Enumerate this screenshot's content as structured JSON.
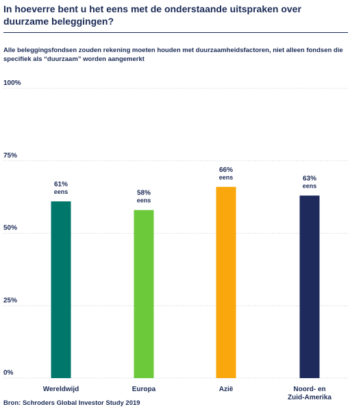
{
  "title": "In hoeverre bent u het eens met de onderstaande uitspraken over duurzame beleggingen?",
  "subtitle": "Alle beleggingsfondsen zouden rekening moeten houden met duurzaamheidsfactoren, niet alleen fondsen die specifiek als “duurzaam” worden aangemerkt",
  "source": "Bron: Schroders Global Investor Study 2019",
  "colors": {
    "text": "#1a2a55",
    "grid": "#c8ccd6"
  },
  "chart_data": {
    "type": "bar",
    "categories": [
      "Wereldwijd",
      "Europa",
      "Azië",
      "Noord- en\nZuid-Amerika"
    ],
    "values": [
      61,
      58,
      66,
      63
    ],
    "value_labels": [
      "61%",
      "58%",
      "66%",
      "63%"
    ],
    "value_suffix": "eens",
    "colors": [
      "#00776b",
      "#6cc93a",
      "#f9a70c",
      "#1d2a5b"
    ],
    "ylim": [
      0,
      100
    ],
    "yticks": [
      0,
      25,
      50,
      75,
      100
    ],
    "ytick_labels": [
      "0%",
      "25%",
      "50%",
      "75%",
      "100%"
    ],
    "grid": true,
    "xlabel": "",
    "ylabel": ""
  }
}
